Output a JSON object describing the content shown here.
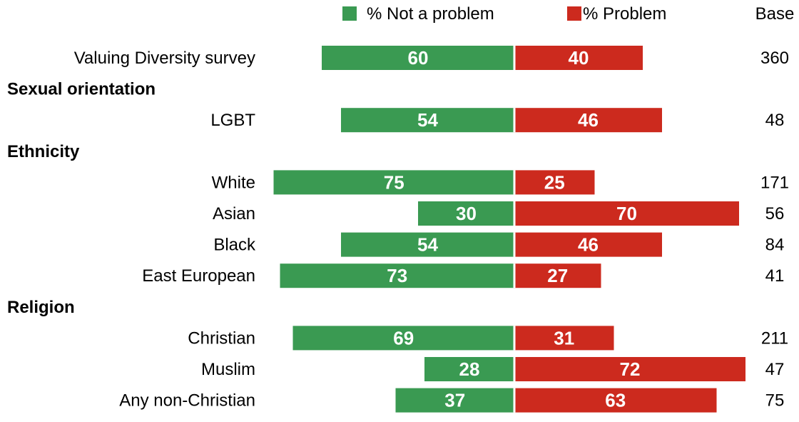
{
  "chart_data": {
    "type": "bar",
    "orientation": "horizontal-diverging",
    "legend": {
      "placement": "top",
      "entries": [
        {
          "label": "% Not a problem",
          "color": "#3a9a52"
        },
        {
          "label": "% Problem",
          "color": "#cc2a1e"
        }
      ],
      "base_header": "Base"
    },
    "series": [
      {
        "name": "% Not a problem",
        "color": "#3a9a52"
      },
      {
        "name": "% Problem",
        "color": "#cc2a1e"
      }
    ],
    "rows": [
      {
        "kind": "category",
        "label": "Valuing Diversity survey",
        "not_problem": 60,
        "problem": 40,
        "base": "360"
      },
      {
        "kind": "group",
        "label": "Sexual orientation"
      },
      {
        "kind": "category",
        "label": "LGBT",
        "not_problem": 54,
        "problem": 46,
        "base": "48"
      },
      {
        "kind": "group",
        "label": "Ethnicity"
      },
      {
        "kind": "category",
        "label": "White",
        "not_problem": 75,
        "problem": 25,
        "base": "171"
      },
      {
        "kind": "category",
        "label": "Asian",
        "not_problem": 30,
        "problem": 70,
        "base": "56"
      },
      {
        "kind": "category",
        "label": "Black",
        "not_problem": 54,
        "problem": 46,
        "base": "84"
      },
      {
        "kind": "category",
        "label": "East European",
        "not_problem": 73,
        "problem": 27,
        "base": "41"
      },
      {
        "kind": "group",
        "label": "Religion"
      },
      {
        "kind": "category",
        "label": "Christian",
        "not_problem": 69,
        "problem": 31,
        "base": "211"
      },
      {
        "kind": "category",
        "label": "Muslim",
        "not_problem": 28,
        "problem": 72,
        "base": "47"
      },
      {
        "kind": "category",
        "label": "Any non-Christian",
        "not_problem": 37,
        "problem": 63,
        "base": "75"
      }
    ],
    "xlim": [
      0,
      100
    ],
    "grid": false
  }
}
